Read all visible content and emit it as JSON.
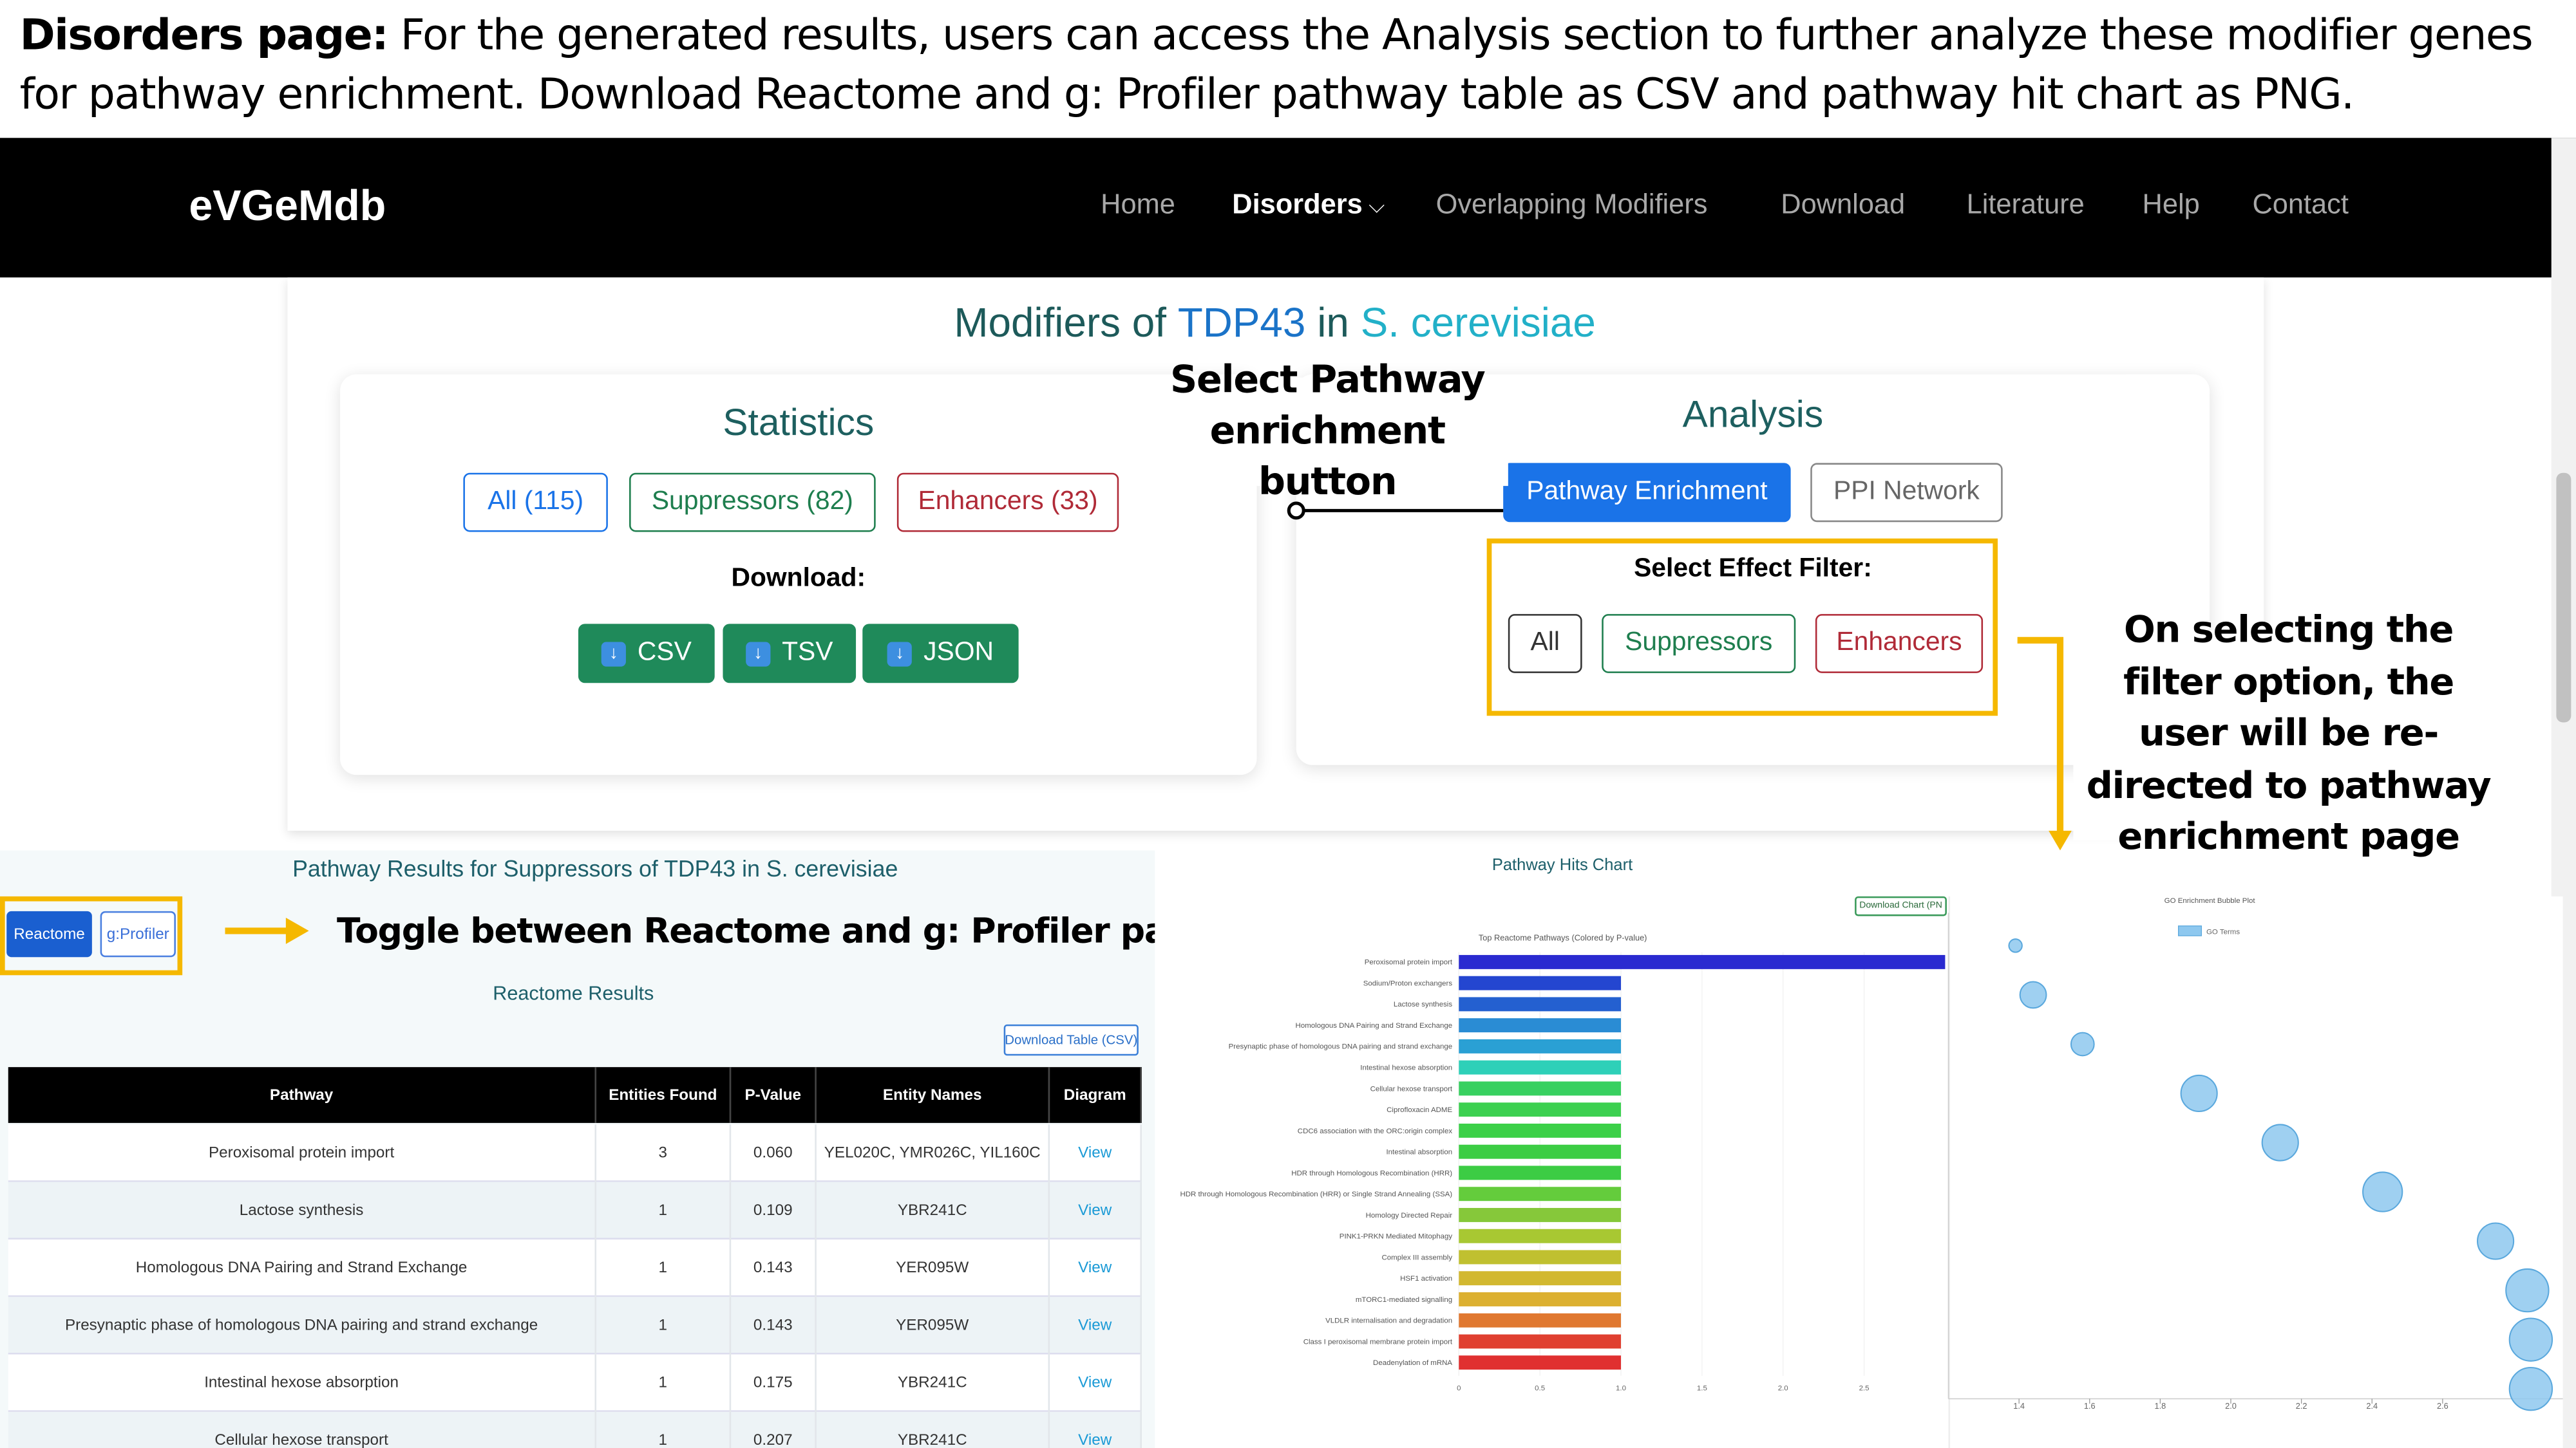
{
  "caption": {
    "lead": "Disorders page:",
    "text": "For the generated results, users can access the Analysis section to further analyze these modifier genes for pathway enrichment. Download Reactome and g: Profiler pathway table as CSV and pathway hit chart as PNG."
  },
  "navbar": {
    "brand": "eVGeMdb",
    "links": [
      "Home",
      "Disorders",
      "Overlapping Modifiers",
      "Download",
      "Literature",
      "Help",
      "Contact"
    ]
  },
  "modifiers_title": {
    "prefix": "Modifiers of",
    "gene": "TDP43",
    "in": "in",
    "organism": "S. cerevisiae"
  },
  "statistics": {
    "title": "Statistics",
    "buttons": [
      "All (115)",
      "Suppressors (82)",
      "Enhancers (33)"
    ],
    "download_label": "Download:",
    "downloads": [
      "CSV",
      "TSV",
      "JSON"
    ]
  },
  "analysis": {
    "title": "Analysis",
    "buttons": [
      "Pathway Enrichment",
      "PPI Network"
    ],
    "filter_label": "Select Effect Filter:",
    "filters": [
      "All",
      "Suppressors",
      "Enhancers"
    ]
  },
  "annotations": {
    "select_pathway": "Select Pathway enrichment button",
    "filter_note": "On selecting the filter option, the user will be re-directed to pathway enrichment page",
    "toggle_note": "Toggle between Reactome and g: Profiler pathway results"
  },
  "results": {
    "title": "Pathway Results for Suppressors of TDP43 in S. cerevisiae",
    "tabs": [
      "Reactome",
      "g:Profiler"
    ],
    "section": "Reactome Results",
    "download": "Download Table (CSV)",
    "table": {
      "columns": [
        "Pathway",
        "Entities Found",
        "P-Value",
        "Entity Names",
        "Diagram"
      ],
      "rows": [
        [
          "Peroxisomal protein import",
          3,
          "0.060",
          "YEL020C, YMR026C, YIL160C",
          "View"
        ],
        [
          "Lactose synthesis",
          1,
          "0.109",
          "YBR241C",
          "View"
        ],
        [
          "Homologous DNA Pairing and Strand Exchange",
          1,
          "0.143",
          "YER095W",
          "View"
        ],
        [
          "Presynaptic phase of homologous DNA pairing and strand exchange",
          1,
          "0.143",
          "YER095W",
          "View"
        ],
        [
          "Intestinal hexose absorption",
          1,
          "0.175",
          "YBR241C",
          "View"
        ],
        [
          "Cellular hexose transport",
          1,
          "0.207",
          "YBR241C",
          "View"
        ]
      ]
    }
  },
  "hits_panel": {
    "title": "Pathway Hits Chart",
    "download": "Download Chart (PN"
  },
  "chart_data": [
    {
      "type": "bar",
      "orientation": "horizontal",
      "title": "Top Reactome Pathways (Colored by P-value)",
      "categories": [
        "Peroxisomal protein import",
        "Sodium/Proton exchangers",
        "Lactose synthesis",
        "Homologous DNA Pairing and Strand Exchange",
        "Presynaptic phase of homologous DNA pairing and strand exchange",
        "Intestinal hexose absorption",
        "Cellular hexose transport",
        "Ciprofloxacin ADME",
        "CDC6 association with the ORC:origin complex",
        "Intestinal absorption",
        "HDR through Homologous Recombination (HRR)",
        "HDR through Homologous Recombination (HRR) or Single Strand Annealing (SSA)",
        "Homology Directed Repair",
        "PINK1-PRKN Mediated Mitophagy",
        "Complex III assembly",
        "HSF1 activation",
        "mTORC1-mediated signalling",
        "VLDLR internalisation and degradation",
        "Class I peroxisomal membrane protein import",
        "Deadenylation of mRNA"
      ],
      "values": [
        3,
        1,
        1,
        1,
        1,
        1,
        1,
        1,
        1,
        1,
        1,
        1,
        1,
        1,
        1,
        1,
        1,
        1,
        1,
        1
      ],
      "colors": [
        "#2a2ad0",
        "#2446d0",
        "#2460d0",
        "#2a8cd4",
        "#2aa0d4",
        "#2ed0b8",
        "#38d060",
        "#3cd050",
        "#3cd048",
        "#3ccd44",
        "#3ccc44",
        "#64cc3c",
        "#86c83a",
        "#a8c832",
        "#c0c030",
        "#d2b830",
        "#dcb030",
        "#e07830",
        "#e04030",
        "#e03030"
      ],
      "xlim": [
        0,
        3
      ],
      "xticks": [
        0,
        0.5,
        {
          "value": 1,
          "label": "1.0"
        },
        1.5,
        {
          "value": 2,
          "label": "2.0"
        },
        2.5
      ]
    },
    {
      "type": "bubble",
      "title": "GO Enrichment Bubble Plot",
      "categories": [
        null,
        null,
        null,
        null,
        null,
        null,
        null,
        null,
        null,
        null
      ],
      "series": [
        {
          "name": "GO Terms",
          "color": "#8ec8ef",
          "x": [
            1.39,
            1.44,
            1.58,
            1.91,
            2.14,
            2.43,
            2.75,
            2.84,
            2.85,
            2.85
          ],
          "sizes": [
            4,
            8,
            7,
            11,
            11,
            12,
            11,
            13,
            13,
            13
          ]
        }
      ],
      "xlim": [
        1.2,
        2.95
      ],
      "xticks": [
        1.4,
        1.6,
        1.8,
        {
          "value": 2,
          "label": "2.0"
        },
        2.2,
        2.4,
        2.6
      ]
    }
  ]
}
